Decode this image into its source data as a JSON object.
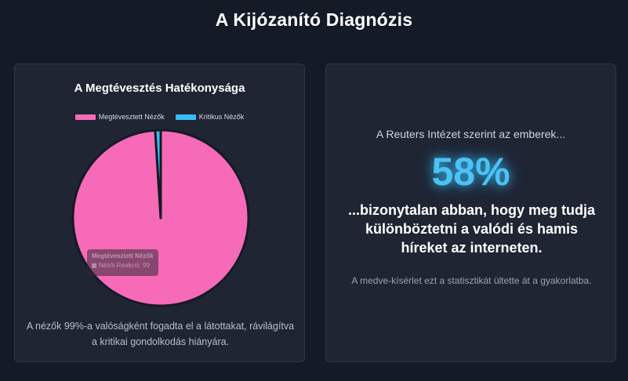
{
  "page": {
    "title": "A Kijózanító Diagnózis"
  },
  "left_card": {
    "caption": "A nézők 99%-a valóságként fogadta el a látottakat, rávilágítva a kritikai gondolkodás hiányára.",
    "tooltip": {
      "title": "Megtévesztett Nézők",
      "row": "Nézői Reakció: 99"
    }
  },
  "right_card": {
    "intro": "A Reuters Intézet szerint az emberek...",
    "stat": "58%",
    "statement": "...bizonytalan abban, hogy meg tudja különböztetni a valódi és hamis híreket az interneten.",
    "note": "A medve-kísérlet ezt a statisztikát ültette át a gyakorlatba."
  },
  "chart_data": {
    "type": "pie",
    "title": "A Megtévesztés Hatékonysága",
    "categories": [
      "Megtévesztett Nézők",
      "Kritikus Nézők"
    ],
    "values": [
      99,
      1
    ],
    "colors": [
      "#f76ab8",
      "#38bdf8"
    ],
    "legend_position": "top",
    "series_label": "Nézői Reakció"
  }
}
